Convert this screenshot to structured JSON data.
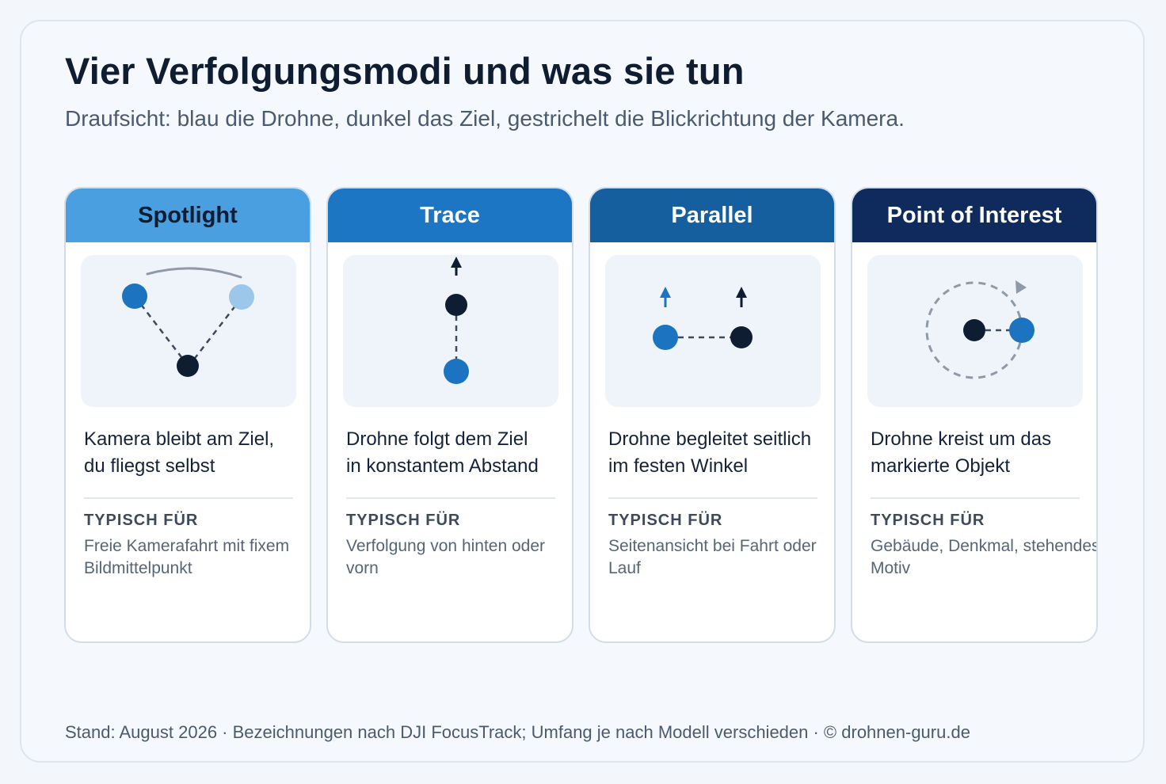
{
  "header": {
    "title": "Vier Verfolgungsmodi und was sie tun",
    "subtitle": "Draufsicht: blau die Drohne, dunkel das Ziel, gestrichelt die Blickrichtung der Kamera."
  },
  "labels": {
    "typisch_fuer": "TYPISCH FÜR"
  },
  "colors": {
    "drone_blue": "#1c73bf",
    "drone_light": "#9cc6ea",
    "target_dark": "#0f1d33",
    "dash_gray": "#3c4a5c",
    "orbit_gray": "#8e9aa8"
  },
  "cards": [
    {
      "title": "Spotlight",
      "header_color": "#4a9fe0",
      "title_color": "#0f1d33",
      "desc_lines": [
        "Kamera bleibt am Ziel,",
        "du fliegst selbst"
      ],
      "typical_lines": [
        "Freie Kamerafahrt mit fixem",
        "Bildmittelpunkt"
      ]
    },
    {
      "title": "Trace",
      "header_color": "#1c76c3",
      "title_color": "#ffffff",
      "desc_lines": [
        "Drohne folgt dem Ziel",
        "in konstantem Abstand"
      ],
      "typical_lines": [
        "Verfolgung von hinten oder",
        "vorn"
      ]
    },
    {
      "title": "Parallel",
      "header_color": "#155f9f",
      "title_color": "#ffffff",
      "desc_lines": [
        "Drohne begleitet seitlich",
        "im festen Winkel"
      ],
      "typical_lines": [
        "Seitenansicht bei Fahrt oder",
        "Lauf"
      ]
    },
    {
      "title": "Point of Interest",
      "header_color": "#0f2a5c",
      "title_color": "#ffffff",
      "desc_lines": [
        "Drohne kreist um das",
        "markierte Objekt"
      ],
      "typical_lines": [
        "Gebäude, Denkmal, stehendes",
        "Motiv"
      ]
    }
  ],
  "footer": "Stand: August 2026 · Bezeichnungen nach DJI FocusTrack; Umfang je nach Modell verschieden · © drohnen-guru.de"
}
